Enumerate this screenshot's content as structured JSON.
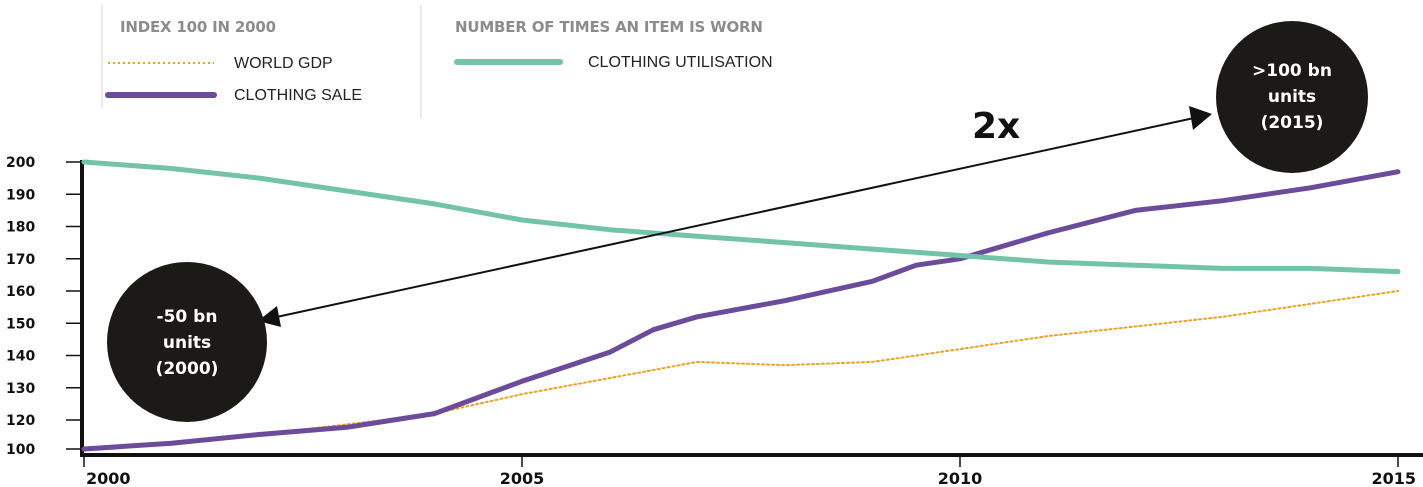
{
  "legend": {
    "group1_title": "INDEX 100 IN 2000",
    "group2_title": "NUMBER OF TIMES AN ITEM IS WORN"
  },
  "annotations": {
    "multiplier": "2x",
    "badge_left": [
      "-50 bn",
      "units",
      "(2000)"
    ],
    "badge_right": [
      ">100 bn",
      "units",
      "(2015)"
    ]
  },
  "colors": {
    "world_gdp": "#f0a020",
    "clothing_sale": "#6b4c9a",
    "clothing_utilisation": "#72c3a8",
    "badge": "#1c1a17",
    "axis": "#111111"
  },
  "chart_data": {
    "type": "line",
    "xlim": [
      2000,
      2015
    ],
    "ylim": [
      100,
      200
    ],
    "xticks": [
      "2000",
      "2005",
      "2010",
      "2015"
    ],
    "yticks": [
      "100",
      "120",
      "130",
      "140",
      "150",
      "160",
      "170",
      "180",
      "190",
      "200"
    ],
    "series": [
      {
        "name": "WORLD GDP",
        "style": "dotted",
        "x": [
          2000,
          2001,
          2002,
          2003,
          2004,
          2005,
          2006,
          2007,
          2008,
          2009,
          2010,
          2011,
          2012,
          2013,
          2014,
          2015
        ],
        "values": [
          100,
          104,
          110,
          117,
          122,
          128,
          133,
          138,
          137,
          138,
          142,
          146,
          149,
          152,
          156,
          160
        ]
      },
      {
        "name": "CLOTHING SALE",
        "style": "solid",
        "x": [
          2000,
          2001,
          2002,
          2003,
          2004,
          2005,
          2006,
          2006.5,
          2007,
          2008,
          2009,
          2009.5,
          2010,
          2011,
          2012,
          2013,
          2014,
          2015
        ],
        "values": [
          100,
          104,
          110,
          115,
          122,
          132,
          141,
          148,
          152,
          157,
          163,
          168,
          170,
          178,
          185,
          188,
          192,
          197
        ]
      },
      {
        "name": "CLOTHING UTILISATION",
        "style": "solid",
        "x": [
          2000,
          2001,
          2002,
          2003,
          2004,
          2005,
          2006,
          2007,
          2008,
          2009,
          2010,
          2011,
          2012,
          2013,
          2014,
          2015
        ],
        "values": [
          200,
          198,
          195,
          191,
          187,
          182,
          179,
          177,
          175,
          173,
          171,
          169,
          168,
          167,
          167,
          166
        ]
      }
    ]
  }
}
